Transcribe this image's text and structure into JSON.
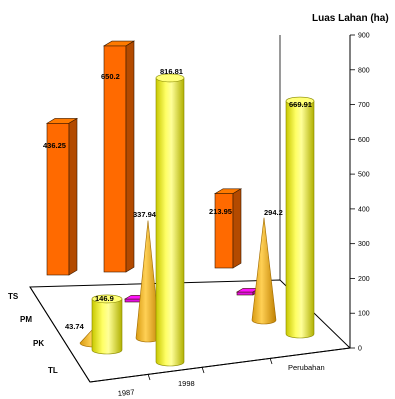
{
  "chart_data": {
    "type": "bar",
    "subtype": "3d-column-bar-cone-cylinder",
    "ylabel": "Luas Lahan (ha)",
    "ylim": [
      0,
      900
    ],
    "yticks": [
      0,
      100,
      200,
      300,
      400,
      500,
      600,
      700,
      800,
      900
    ],
    "categories": [
      "1987",
      "1998",
      "Perubahan"
    ],
    "series": [
      {
        "name": "TS",
        "shape": "box",
        "color": "#ff6a00",
        "values": [
          436.25,
          650.2,
          213.95
        ]
      },
      {
        "name": "PM",
        "shape": "box",
        "color": "#e010e0",
        "values": [
          null,
          21,
          18
        ]
      },
      {
        "name": "PK",
        "shape": "cone",
        "color": "#ffcc33",
        "values": [
          43.74,
          337.94,
          294.2
        ]
      },
      {
        "name": "TL",
        "shape": "cylinder",
        "color": "#ffff33",
        "values": [
          146.9,
          816.81,
          669.91
        ]
      }
    ],
    "data_labels": [
      {
        "text": "436.25"
      },
      {
        "text": "650.2"
      },
      {
        "text": "816.81"
      },
      {
        "text": "213.95"
      },
      {
        "text": "669.91"
      },
      {
        "text": "337.94"
      },
      {
        "text": "294.2"
      },
      {
        "text": "146.9"
      },
      {
        "text": "43.74"
      }
    ],
    "grid": false,
    "legend": "none"
  }
}
